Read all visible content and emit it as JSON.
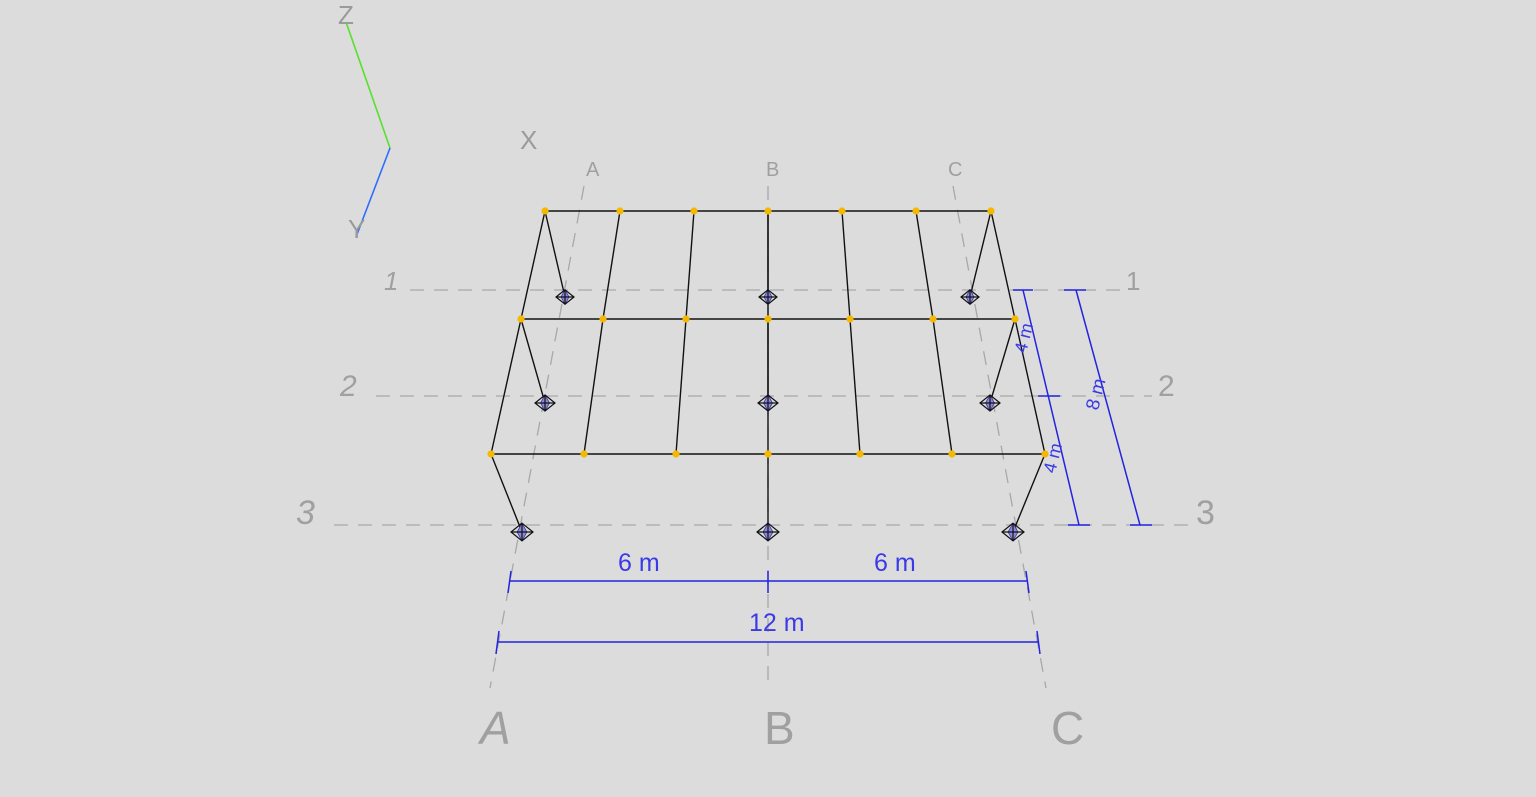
{
  "axes": {
    "x_label": "X",
    "y_label": "Y",
    "z_label": "Z",
    "colors": {
      "x": "#ff0000",
      "x_end": "#ff8a00",
      "y": "#2e6bff",
      "z": "#57e02c"
    }
  },
  "gridlines": {
    "letters": [
      "A",
      "B",
      "C"
    ],
    "numbers": [
      "1",
      "2",
      "3"
    ]
  },
  "dimensions": {
    "bay_left": "6 m",
    "bay_right": "6 m",
    "total_width": "12 m",
    "span_front": "4 m",
    "span_back": "4 m",
    "total_depth": "8 m"
  },
  "colors": {
    "background": "#dcdcdc",
    "member": "#111111",
    "node": "#f5b800",
    "dimension": "#2323e0",
    "grid": "#a8a8a8"
  }
}
